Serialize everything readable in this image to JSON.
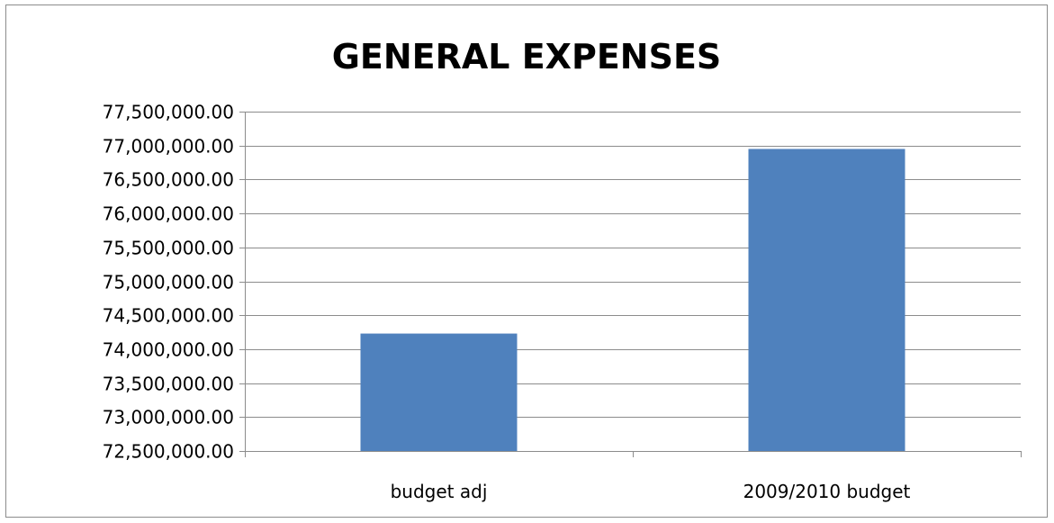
{
  "chart_data": {
    "type": "bar",
    "title": "GENERAL EXPENSES",
    "xlabel": "",
    "ylabel": "",
    "categories": [
      "budget adj",
      "2009/2010 budget"
    ],
    "values": [
      74230000,
      76950000
    ],
    "ylim": [
      72500000,
      77500000
    ],
    "yticks": [
      "72,500,000.00",
      "73,000,000.00",
      "73,500,000.00",
      "74,000,000.00",
      "74,500,000.00",
      "75,000,000.00",
      "75,500,000.00",
      "76,000,000.00",
      "76,500,000.00",
      "77,000,000.00",
      "77,500,000.00"
    ],
    "ytick_values": [
      72500000,
      73000000,
      73500000,
      74000000,
      74500000,
      75000000,
      75500000,
      76000000,
      76500000,
      77000000,
      77500000
    ],
    "grid": true,
    "legend": "none",
    "bar_color": "#4f81bd"
  }
}
